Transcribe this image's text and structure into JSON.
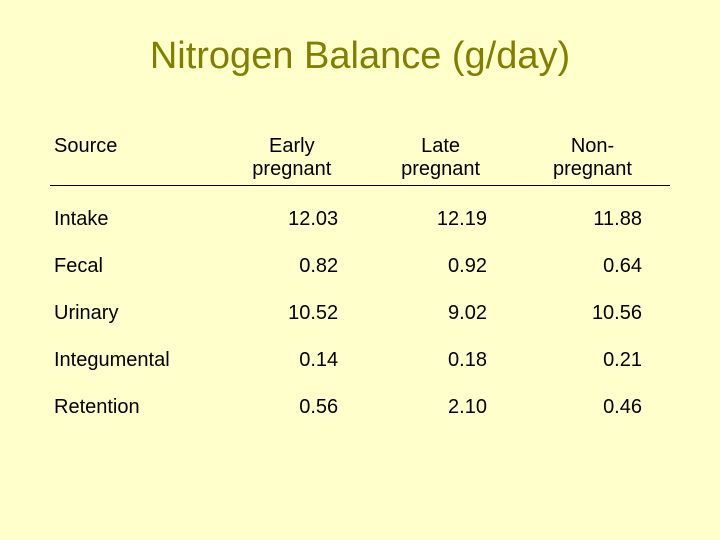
{
  "title": "Nitrogen Balance (g/day)",
  "table": {
    "type": "table",
    "background_color": "#ffffcc",
    "title_color": "#808000",
    "text_color": "#000000",
    "title_fontsize": 38,
    "cell_fontsize": 20,
    "header_underline": true,
    "columns": [
      {
        "label": "Source",
        "align": "left"
      },
      {
        "label_line1": "Early",
        "label_line2": "pregnant",
        "align": "right"
      },
      {
        "label_line1": "Late",
        "label_line2": "pregnant",
        "align": "right"
      },
      {
        "label_line1": "Non-",
        "label_line2": "pregnant",
        "align": "right"
      }
    ],
    "rows": [
      {
        "label": "Intake",
        "values": [
          "12.03",
          "12.19",
          "11.88"
        ]
      },
      {
        "label": "Fecal",
        "values": [
          "0.82",
          "0.92",
          "0.64"
        ]
      },
      {
        "label": "Urinary",
        "values": [
          "10.52",
          "9.02",
          "10.56"
        ]
      },
      {
        "label": "Integumental",
        "values": [
          "0.14",
          "0.18",
          "0.21"
        ]
      },
      {
        "label": "Retention",
        "values": [
          "0.56",
          "2.10",
          "0.46"
        ]
      }
    ]
  }
}
